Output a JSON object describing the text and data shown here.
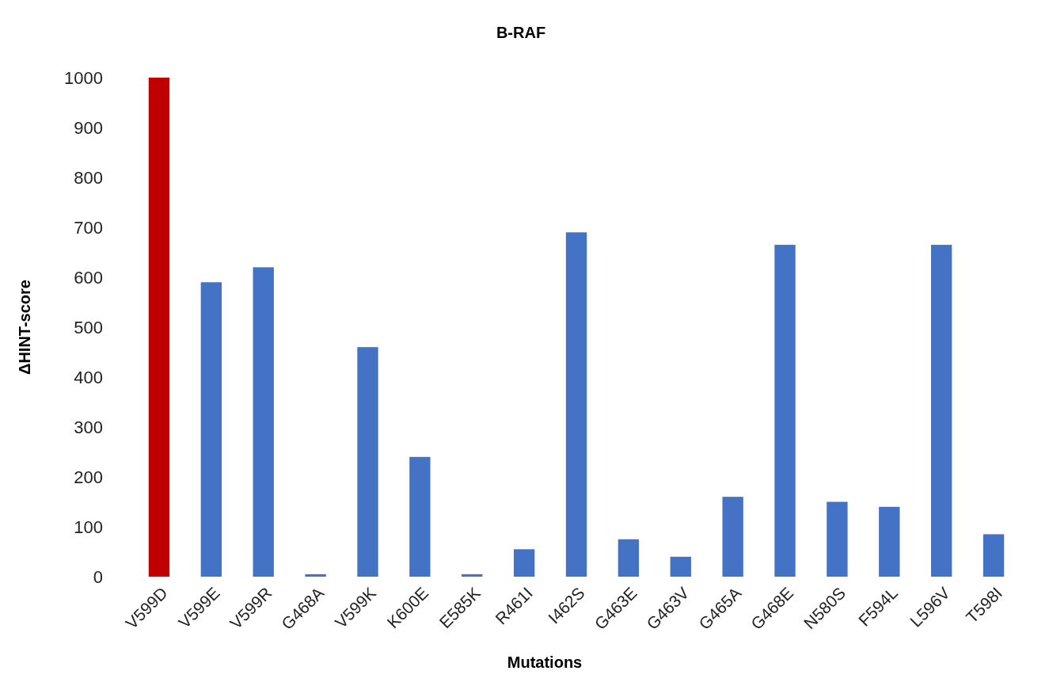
{
  "chart_data": {
    "type": "bar",
    "title": "B-RAF",
    "xlabel": "Mutations",
    "ylabel": "ΔHINT-score",
    "categories": [
      "V599D",
      "V599E",
      "V599R",
      "G468A",
      "V599K",
      "K600E",
      "E585K",
      "R461I",
      "I462S",
      "G463E",
      "G463V",
      "G465A",
      "G468E",
      "N580S",
      "F594L",
      "L596V",
      "T598I"
    ],
    "values": [
      1000,
      590,
      620,
      5,
      460,
      240,
      5,
      55,
      690,
      75,
      40,
      160,
      665,
      150,
      140,
      665,
      85
    ],
    "colors": [
      "#c00000",
      "#4472c4",
      "#4472c4",
      "#4472c4",
      "#4472c4",
      "#4472c4",
      "#4472c4",
      "#4472c4",
      "#4472c4",
      "#4472c4",
      "#4472c4",
      "#4472c4",
      "#4472c4",
      "#4472c4",
      "#4472c4",
      "#4472c4",
      "#4472c4"
    ],
    "ylim": [
      0,
      1000
    ],
    "yticks": [
      0,
      100,
      200,
      300,
      400,
      500,
      600,
      700,
      800,
      900,
      1000
    ],
    "grid": false
  }
}
